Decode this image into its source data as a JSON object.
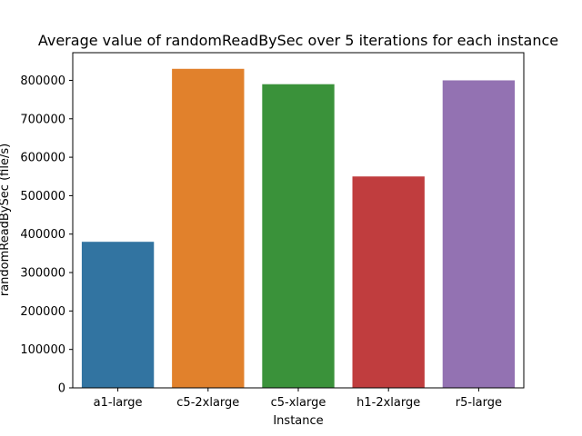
{
  "chart_data": {
    "type": "bar",
    "title": "Average value of randomReadBySec over 5 iterations for each instance",
    "xlabel": "Instance",
    "ylabel": "randomReadBySec (file/s)",
    "categories": [
      "a1-large",
      "c5-2xlarge",
      "c5-xlarge",
      "h1-2xlarge",
      "r5-large"
    ],
    "values": [
      380000,
      830000,
      790000,
      550000,
      800000
    ],
    "colors": [
      "#3274a1",
      "#e1812c",
      "#3a923a",
      "#c03d3e",
      "#9372b2"
    ],
    "ylim": [
      0,
      872000
    ],
    "yticks": [
      0,
      100000,
      200000,
      300000,
      400000,
      500000,
      600000,
      700000,
      800000
    ],
    "ytick_labels": [
      "0",
      "100000",
      "200000",
      "300000",
      "400000",
      "500000",
      "600000",
      "700000",
      "800000"
    ],
    "grid": false,
    "legend": false
  }
}
